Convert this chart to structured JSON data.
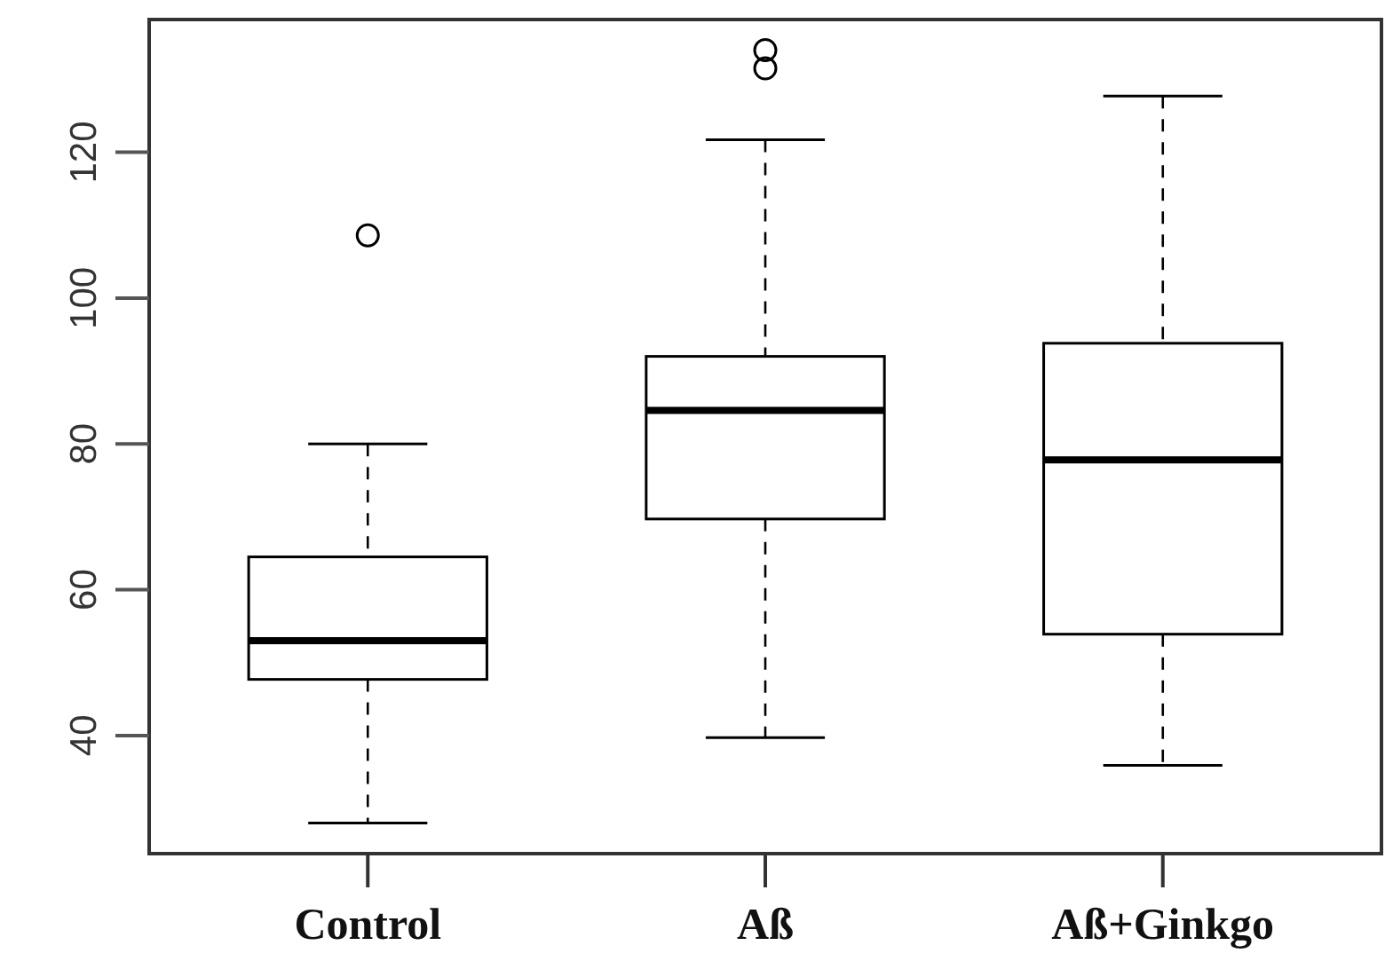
{
  "chart_data": {
    "type": "box",
    "categories": [
      "Control",
      "Aß",
      "Aß+Ginkgo"
    ],
    "boxes": [
      {
        "low": 28,
        "q1": 47.7,
        "median": 53,
        "q3": 64.5,
        "high": 80,
        "outliers": [
          108.6
        ]
      },
      {
        "low": 39.7,
        "q1": 69.7,
        "median": 84.6,
        "q3": 92,
        "high": 121.7,
        "outliers": [
          131.5,
          134
        ]
      },
      {
        "low": 35.9,
        "q1": 53.9,
        "median": 77.8,
        "q3": 93.8,
        "high": 127.7
      }
    ],
    "color": "#000000",
    "ylim": [
      23.8,
      138.2
    ],
    "yticks": [
      40,
      60,
      80,
      100,
      120
    ],
    "grid": false
  }
}
